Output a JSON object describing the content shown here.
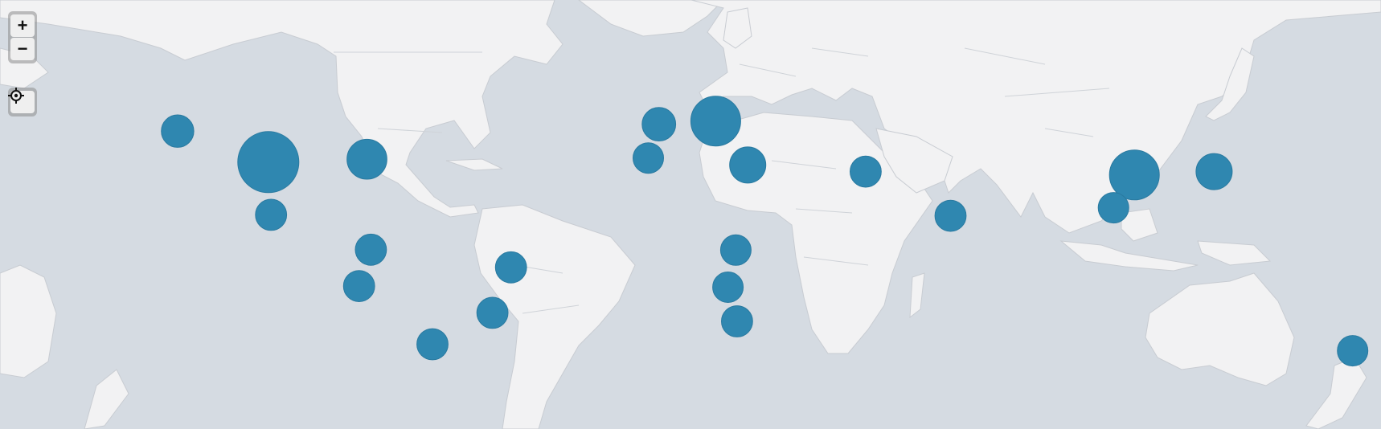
{
  "map": {
    "colors": {
      "ocean": "#d5dbe2",
      "land": "#f2f2f3",
      "marker": "#2f87b0"
    },
    "controls": {
      "zoom_in": {
        "icon": "plus-icon",
        "glyph": "+"
      },
      "zoom_out": {
        "icon": "minus-icon",
        "glyph": "−"
      },
      "locate": {
        "icon": "locate-icon"
      }
    },
    "markers": [
      {
        "name": "north-america-us-central",
        "lon": -100.0,
        "lat": 39.0,
        "magnitude": 1.0
      },
      {
        "name": "north-america-us-east",
        "lon": -75.0,
        "lat": 40.0,
        "magnitude": 0.33
      },
      {
        "name": "north-america-canada-west",
        "lon": -123.0,
        "lat": 49.3,
        "magnitude": 0.18
      },
      {
        "name": "north-america-mexico",
        "lon": -99.3,
        "lat": 19.5,
        "magnitude": 0.16
      },
      {
        "name": "south-america-colombia",
        "lon": -74.0,
        "lat": 4.6,
        "magnitude": 0.16
      },
      {
        "name": "south-america-brazil-ne",
        "lon": -38.5,
        "lat": -3.7,
        "magnitude": 0.16
      },
      {
        "name": "south-america-peru",
        "lon": -77.0,
        "lat": -12.0,
        "magnitude": 0.16
      },
      {
        "name": "south-america-brazil-se",
        "lon": -43.2,
        "lat": -22.9,
        "magnitude": 0.16
      },
      {
        "name": "south-america-argentina",
        "lon": -58.4,
        "lat": -34.6,
        "magnitude": 0.16
      },
      {
        "name": "europe-germany",
        "lon": 13.4,
        "lat": 52.5,
        "magnitude": 0.6
      },
      {
        "name": "europe-uk",
        "lon": -1.0,
        "lat": 51.5,
        "magnitude": 0.2
      },
      {
        "name": "europe-spain",
        "lon": -3.7,
        "lat": 40.4,
        "magnitude": 0.15
      },
      {
        "name": "europe-greece",
        "lon": 21.5,
        "lat": 38.0,
        "magnitude": 0.25
      },
      {
        "name": "middle-east-iran",
        "lon": 51.4,
        "lat": 35.7,
        "magnitude": 0.16
      },
      {
        "name": "asia-india",
        "lon": 72.9,
        "lat": 19.1,
        "magnitude": 0.16
      },
      {
        "name": "asia-china-east",
        "lon": 119.5,
        "lat": 34.5,
        "magnitude": 0.6
      },
      {
        "name": "asia-hong-kong",
        "lon": 114.2,
        "lat": 22.3,
        "magnitude": 0.15
      },
      {
        "name": "asia-japan",
        "lon": 139.7,
        "lat": 35.7,
        "magnitude": 0.25
      },
      {
        "name": "africa-central",
        "lon": 18.5,
        "lat": 4.4,
        "magnitude": 0.15
      },
      {
        "name": "africa-angola",
        "lon": 16.5,
        "lat": -12.5,
        "magnitude": 0.15
      },
      {
        "name": "africa-south-africa",
        "lon": 18.8,
        "lat": -26.2,
        "magnitude": 0.16
      },
      {
        "name": "oceania-new-zealand",
        "lon": 174.8,
        "lat": -36.9,
        "magnitude": 0.15
      }
    ]
  }
}
